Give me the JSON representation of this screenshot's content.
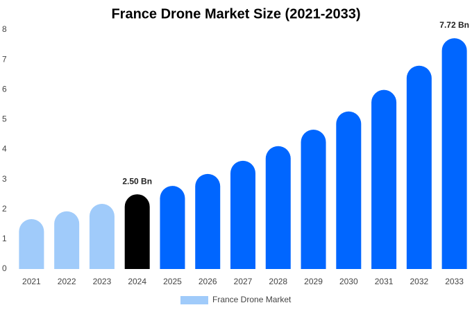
{
  "chart_data": {
    "type": "bar",
    "title": "France Drone Market Size (2021-2033)",
    "categories": [
      "2021",
      "2022",
      "2023",
      "2024",
      "2025",
      "2026",
      "2027",
      "2028",
      "2029",
      "2030",
      "2031",
      "2032",
      "2033"
    ],
    "series": [
      {
        "name": "France Drone Market",
        "color": "#a0cbfa",
        "colors": [
          "#a0cbfa",
          "#a0cbfa",
          "#a0cbfa",
          "#000000",
          "#0066ff",
          "#0066ff",
          "#0066ff",
          "#0066ff",
          "#0066ff",
          "#0066ff",
          "#0066ff",
          "#0066ff",
          "#0066ff"
        ],
        "values": [
          1.67,
          1.93,
          2.18,
          2.5,
          2.78,
          3.18,
          3.62,
          4.11,
          4.66,
          5.27,
          5.99,
          6.8,
          7.72
        ],
        "value_labels": [
          null,
          null,
          null,
          "2.50 Bn",
          null,
          null,
          null,
          null,
          null,
          null,
          null,
          null,
          "7.72 Bn"
        ]
      }
    ],
    "ylim": [
      0,
      8
    ],
    "yticks": [
      0,
      1,
      2,
      3,
      4,
      5,
      6,
      7,
      8
    ],
    "grid": false
  }
}
